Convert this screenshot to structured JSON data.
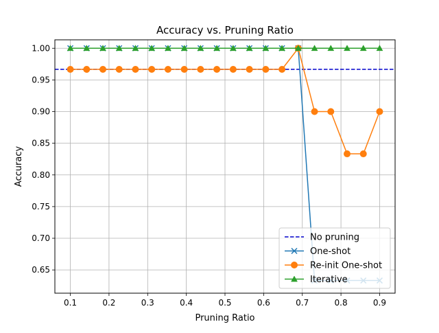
{
  "chart_data": {
    "type": "line",
    "title": "Accuracy vs. Pruning Ratio",
    "xlabel": "Pruning Ratio",
    "ylabel": "Accuracy",
    "xlim": [
      0.06,
      0.94
    ],
    "ylim": [
      0.6133,
      1.0133
    ],
    "xticks": [
      0.1,
      0.2,
      0.3,
      0.4,
      0.5,
      0.6,
      0.7,
      0.8,
      0.9
    ],
    "xtick_labels": [
      "0.1",
      "0.2",
      "0.3",
      "0.4",
      "0.5",
      "0.6",
      "0.7",
      "0.8",
      "0.9"
    ],
    "yticks": [
      0.65,
      0.7,
      0.75,
      0.8,
      0.85,
      0.9,
      0.95,
      1.0
    ],
    "ytick_labels": [
      "0.65",
      "0.70",
      "0.75",
      "0.80",
      "0.85",
      "0.90",
      "0.95",
      "1.00"
    ],
    "grid": true,
    "legend_position": "lower-right",
    "x": [
      0.1,
      0.1421,
      0.1842,
      0.2263,
      0.2684,
      0.3105,
      0.3526,
      0.3947,
      0.4368,
      0.4789,
      0.5211,
      0.5632,
      0.6053,
      0.6474,
      0.6895,
      0.7316,
      0.7737,
      0.8158,
      0.8579,
      0.9
    ],
    "series": [
      {
        "name": "No pruning",
        "kind": "hline",
        "value": 0.9667,
        "color": "#0000cc",
        "linestyle": "dashed"
      },
      {
        "name": "One-shot",
        "kind": "line",
        "marker": "x",
        "color": "#1f77b4",
        "values": [
          1.0,
          1.0,
          1.0,
          1.0,
          1.0,
          1.0,
          1.0,
          1.0,
          1.0,
          1.0,
          1.0,
          1.0,
          1.0,
          1.0,
          1.0,
          0.6333,
          0.6333,
          0.6333,
          0.6333,
          0.6333
        ]
      },
      {
        "name": "Re-init One-shot",
        "kind": "line",
        "marker": "circle",
        "color": "#ff7f0e",
        "values": [
          0.9667,
          0.9667,
          0.9667,
          0.9667,
          0.9667,
          0.9667,
          0.9667,
          0.9667,
          0.9667,
          0.9667,
          0.9667,
          0.9667,
          0.9667,
          0.9667,
          1.0,
          0.9,
          0.9,
          0.8333,
          0.8333,
          0.9
        ]
      },
      {
        "name": "Iterative",
        "kind": "line",
        "marker": "triangle",
        "color": "#2ca02c",
        "values": [
          1.0,
          1.0,
          1.0,
          1.0,
          1.0,
          1.0,
          1.0,
          1.0,
          1.0,
          1.0,
          1.0,
          1.0,
          1.0,
          1.0,
          1.0,
          1.0,
          1.0,
          1.0,
          1.0,
          1.0
        ]
      }
    ]
  }
}
